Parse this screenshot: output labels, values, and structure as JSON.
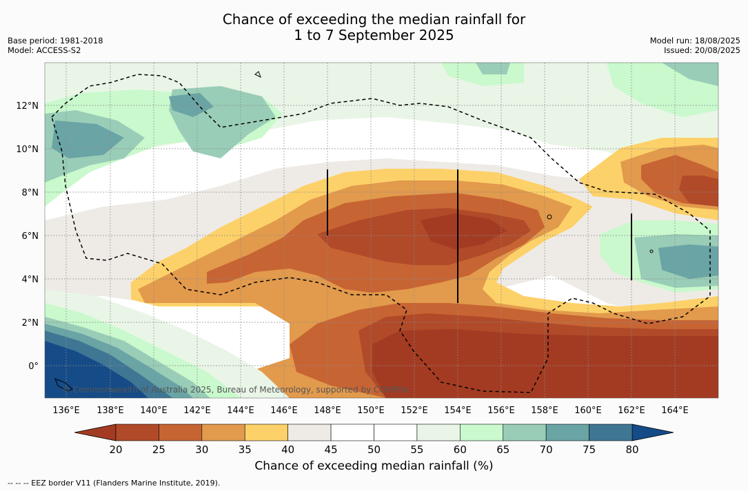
{
  "title": {
    "line1": "Chance of exceeding the median rainfall for",
    "line2": "1 to 7 September 2025"
  },
  "meta_left": {
    "base_period": "Base period: 1981-2018",
    "model": "Model: ACCESS-S2"
  },
  "meta_right": {
    "model_run": "Model run: 18/08/2025",
    "issued": "Issued: 20/08/2025"
  },
  "map": {
    "lon_labels": [
      "136°E",
      "138°E",
      "140°E",
      "142°E",
      "144°E",
      "146°E",
      "148°E",
      "150°E",
      "152°E",
      "154°E",
      "156°E",
      "158°E",
      "160°E",
      "162°E",
      "164°E"
    ],
    "lat_labels": [
      "12°N",
      "10°N",
      "8°N",
      "6°N",
      "4°N",
      "2°N",
      "0°"
    ],
    "copyright": "© Commonwealth of Australia 2025, Bureau of Meteorology, supported by COSPPac",
    "colors": {
      "c20": "#a33b22",
      "c25": "#b04a29",
      "c30": "#c76433",
      "c35": "#e29a4c",
      "c40": "#fdd169",
      "c45": "#eeebe6",
      "c50": "#ffffff",
      "c55": "#ffffff",
      "c60": "#e9f5e6",
      "c65": "#c9f9cc",
      "c70": "#99cdb7",
      "c75": "#6aa4a5",
      "c80": "#3f7694",
      "c85": "#154b87"
    }
  },
  "colorbar": {
    "ticks": [
      "20",
      "25",
      "30",
      "35",
      "40",
      "45",
      "50",
      "55",
      "60",
      "65",
      "70",
      "75",
      "80"
    ],
    "colors": [
      "#b04a29",
      "#c76433",
      "#e29a4c",
      "#fdd169",
      "#eeebe6",
      "#ffffff",
      "#ffffff",
      "#e9f5e6",
      "#c9f9cc",
      "#99cdb7",
      "#6aa4a5",
      "#3f7694"
    ],
    "under_color": "#a33b22",
    "over_color": "#154b87",
    "label": "Chance of exceeding median rainfall (%)"
  },
  "footnote": "--  --  -- EEZ border V11 (Flanders Marine Institute, 2019)."
}
